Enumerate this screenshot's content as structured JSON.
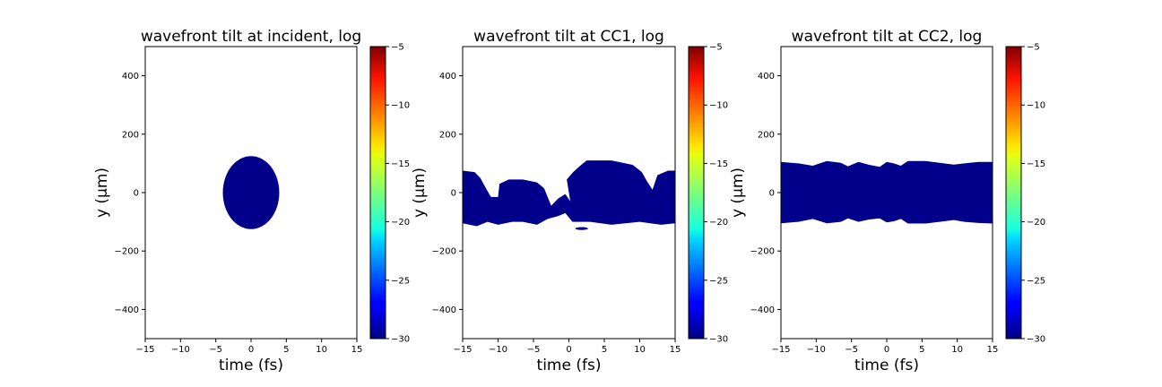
{
  "chart_data": [
    {
      "type": "heatmap",
      "title": "wavefront tilt at incident, log",
      "xlabel": "time (fs)",
      "ylabel": "y (μm)",
      "xlim": [
        -15,
        15
      ],
      "ylim": [
        -500,
        500
      ],
      "xticks": [
        -15,
        -10,
        -5,
        0,
        5,
        10,
        15
      ],
      "yticks": [
        400,
        200,
        0,
        -200,
        -400
      ],
      "colorbar": {
        "range": [
          -30,
          -5
        ],
        "ticks": [
          -5,
          -10,
          -15,
          -20,
          -25,
          -30
        ],
        "colormap": "jet"
      },
      "filled_value": -30,
      "fill_color": "#00008b",
      "regions": [
        {
          "shape": "ellipse",
          "center": [
            0,
            0
          ],
          "rx": 4,
          "ry": 125
        }
      ]
    },
    {
      "type": "heatmap",
      "title": "wavefront tilt at CC1, log",
      "xlabel": "time (fs)",
      "ylabel": "y (μm)",
      "xlim": [
        -15,
        15
      ],
      "ylim": [
        -500,
        500
      ],
      "xticks": [
        -15,
        -10,
        -5,
        0,
        5,
        10,
        15
      ],
      "yticks": [
        400,
        200,
        0,
        -200,
        -400
      ],
      "colorbar": {
        "range": [
          -30,
          -5
        ],
        "ticks": [
          -5,
          -10,
          -15,
          -20,
          -25,
          -30
        ],
        "colormap": "jet"
      },
      "filled_value": -30,
      "fill_color": "#00008b",
      "regions": [
        {
          "shape": "band",
          "upper": [
            [
              -15,
              75
            ],
            [
              -13.3,
              70
            ],
            [
              -12.5,
              50
            ],
            [
              -11.6,
              10
            ],
            [
              -11,
              -15
            ],
            [
              -10,
              -15
            ],
            [
              -9.8,
              30
            ],
            [
              -8.5,
              45
            ],
            [
              -6.5,
              45
            ],
            [
              -4.5,
              35
            ],
            [
              -3.5,
              15
            ],
            [
              -2.5,
              -45
            ],
            [
              -1.5,
              -20
            ],
            [
              -0.5,
              -5
            ],
            [
              0.2,
              -30
            ],
            [
              0,
              0
            ],
            [
              -0.3,
              45
            ],
            [
              0.6,
              70
            ],
            [
              1.5,
              90
            ],
            [
              2.5,
              110
            ],
            [
              6,
              110
            ],
            [
              9,
              95
            ],
            [
              10.3,
              70
            ],
            [
              11,
              40
            ],
            [
              11.8,
              10
            ],
            [
              12.5,
              60
            ],
            [
              14,
              75
            ],
            [
              15,
              75
            ]
          ],
          "lower": [
            [
              -15,
              -105
            ],
            [
              -13,
              -115
            ],
            [
              -11.5,
              -100
            ],
            [
              -10,
              -110
            ],
            [
              -8,
              -100
            ],
            [
              -6.5,
              -100
            ],
            [
              -4.5,
              -110
            ],
            [
              -3,
              -90
            ],
            [
              -1.5,
              -80
            ],
            [
              -0.5,
              -70
            ],
            [
              0.5,
              -100
            ],
            [
              3,
              -100
            ],
            [
              6,
              -110
            ],
            [
              10,
              -100
            ],
            [
              13,
              -110
            ],
            [
              15,
              -105
            ]
          ]
        },
        {
          "shape": "ellipse",
          "center": [
            1.8,
            -123
          ],
          "rx": 0.9,
          "ry": 5
        }
      ]
    },
    {
      "type": "heatmap",
      "title": "wavefront tilt at CC2, log",
      "xlabel": "time (fs)",
      "ylabel": "y (μm)",
      "xlim": [
        -15,
        15
      ],
      "ylim": [
        -500,
        500
      ],
      "xticks": [
        -15,
        -10,
        -5,
        0,
        5,
        10,
        15
      ],
      "yticks": [
        400,
        200,
        0,
        -200,
        -400
      ],
      "colorbar": {
        "range": [
          -30,
          -5
        ],
        "ticks": [
          -5,
          -10,
          -15,
          -20,
          -25,
          -30
        ],
        "colormap": "jet"
      },
      "filled_value": -30,
      "fill_color": "#00008b",
      "regions": [
        {
          "shape": "band",
          "upper": [
            [
              -15,
              105
            ],
            [
              -12.5,
              100
            ],
            [
              -10.5,
              92
            ],
            [
              -8.5,
              108
            ],
            [
              -6.5,
              102
            ],
            [
              -5.5,
              90
            ],
            [
              -4,
              105
            ],
            [
              -2.5,
              95
            ],
            [
              -1,
              88
            ],
            [
              0,
              105
            ],
            [
              1,
              100
            ],
            [
              2,
              92
            ],
            [
              3,
              108
            ],
            [
              5.5,
              108
            ],
            [
              7.5,
              102
            ],
            [
              9.5,
              96
            ],
            [
              11,
              100
            ],
            [
              13,
              105
            ],
            [
              15,
              105
            ]
          ],
          "lower": [
            [
              -15,
              -105
            ],
            [
              -12.5,
              -100
            ],
            [
              -10.5,
              -90
            ],
            [
              -8.5,
              -105
            ],
            [
              -6.5,
              -100
            ],
            [
              -5.5,
              -88
            ],
            [
              -4,
              -100
            ],
            [
              -2.5,
              -92
            ],
            [
              -1,
              -88
            ],
            [
              0,
              -102
            ],
            [
              1,
              -98
            ],
            [
              2,
              -90
            ],
            [
              3,
              -106
            ],
            [
              5.5,
              -106
            ],
            [
              7.5,
              -100
            ],
            [
              9.5,
              -94
            ],
            [
              11,
              -100
            ],
            [
              13,
              -104
            ],
            [
              15,
              -106
            ]
          ]
        }
      ]
    }
  ]
}
